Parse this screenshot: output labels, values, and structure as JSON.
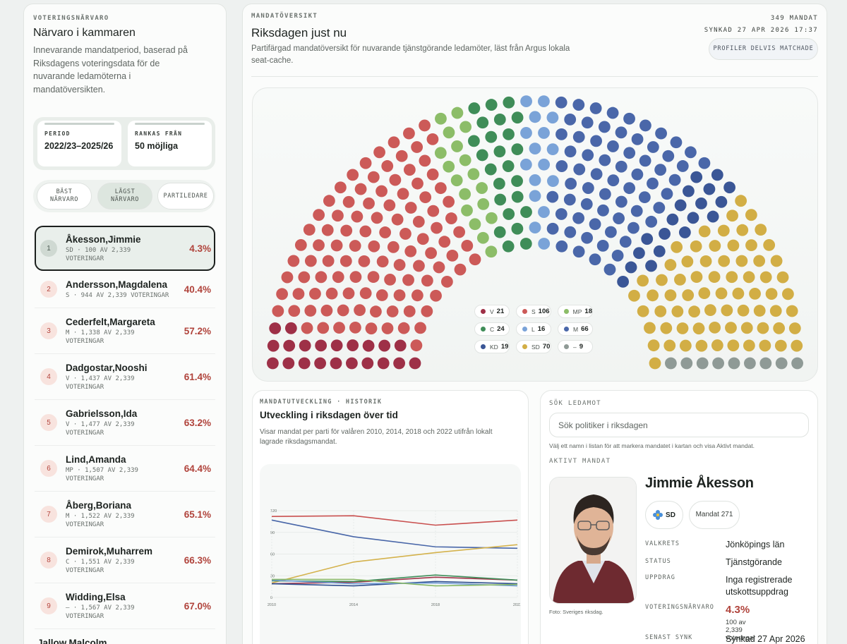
{
  "attendance": {
    "eyebrow": "VOTERINGSNÄRVARO",
    "title": "Närvaro i kammaren",
    "description": "Innevarande mandatperiod, baserad på Riksdagens voteringsdata för de nuvarande ledamöterna i mandatöversikten.",
    "period_label": "PERIOD",
    "period": "2022/23–2025/26",
    "rank_label": "RANKAS FRÅN",
    "rank_from": "50 möjliga",
    "tabs": [
      "BÄST NÄRVARO",
      "LÄGST NÄRVARO",
      "PARTILEDARE"
    ],
    "active_tab": 1,
    "selected": 0,
    "members": [
      {
        "rank": 1,
        "name": "Åkesson,Jimmie",
        "meta": "SD · 100 AV 2,339 VOTERINGAR",
        "attendance": "4.3%"
      },
      {
        "rank": 2,
        "name": "Andersson,Magdalena",
        "meta": "S · 944 AV 2,339 VOTERINGAR",
        "attendance": "40.4%"
      },
      {
        "rank": 3,
        "name": "Cederfelt,Margareta",
        "meta": "M · 1,338 AV 2,339 VOTERINGAR",
        "attendance": "57.2%"
      },
      {
        "rank": 4,
        "name": "Dadgostar,Nooshi",
        "meta": "V · 1,437 AV 2,339 VOTERINGAR",
        "attendance": "61.4%"
      },
      {
        "rank": 5,
        "name": "Gabrielsson,Ida",
        "meta": "V · 1,477 AV 2,339 VOTERINGAR",
        "attendance": "63.2%"
      },
      {
        "rank": 6,
        "name": "Lind,Amanda",
        "meta": "MP · 1,507 AV 2,339 VOTERINGAR",
        "attendance": "64.4%"
      },
      {
        "rank": 7,
        "name": "Åberg,Boriana",
        "meta": "M · 1,522 AV 2,339 VOTERINGAR",
        "attendance": "65.1%"
      },
      {
        "rank": 8,
        "name": "Demirok,Muharrem",
        "meta": "C · 1,551 AV 2,339 VOTERINGAR",
        "attendance": "66.3%"
      },
      {
        "rank": 9,
        "name": "Widding,Elsa",
        "meta": "– · 1,567 AV 2,339 VOTERINGAR",
        "attendance": "67.0%"
      },
      {
        "name": "Jallow,Malcolm"
      }
    ]
  },
  "overview": {
    "eyebrow": "MANDATÖVERSIKT",
    "title": "Riksdagen just nu",
    "description": "Partifärgad mandatöversikt för nuvarande tjänstgörande ledamöter, läst från Argus lokala seat-cache.",
    "total": "349 MANDAT",
    "synced": "SYNKAD 27 APR 2026 17:37",
    "status_button": "PROFILER DELVIS MATCHADE",
    "parties": [
      {
        "name": "V",
        "seats": 21,
        "color": "#9e3047"
      },
      {
        "name": "S",
        "seats": 106,
        "color": "#cc5a58"
      },
      {
        "name": "MP",
        "seats": 18,
        "color": "#8cbd68"
      },
      {
        "name": "C",
        "seats": 24,
        "color": "#3f8d58"
      },
      {
        "name": "L",
        "seats": 16,
        "color": "#7aa3d8"
      },
      {
        "name": "M",
        "seats": 66,
        "color": "#4a67a9"
      },
      {
        "name": "KD",
        "seats": 19,
        "color": "#3a5696"
      },
      {
        "name": "SD",
        "seats": 70,
        "color": "#d2ae45"
      },
      {
        "name": "–",
        "seats": 9,
        "color": "#8f9a96"
      }
    ]
  },
  "history": {
    "eyebrow": "MANDATUTVECKLING · HISTORIK",
    "title": "Utveckling i riksdagen över tid",
    "description": "Visar mandat per parti för valåren 2010, 2014, 2018 och 2022 utifrån lokalt lagrade riksdagsmandat.",
    "chart": {
      "type": "line",
      "x": [
        2010,
        2014,
        2018,
        2022
      ],
      "xlim": [
        2010,
        2022
      ],
      "xticks": [
        2010,
        2014,
        2018,
        2022
      ],
      "ylim": [
        0,
        120
      ],
      "yticks": [
        0,
        30,
        60,
        90,
        120
      ],
      "grid": true,
      "series": [
        {
          "color": "#c9504f",
          "values": [
            112,
            113,
            100,
            107
          ]
        },
        {
          "color": "#4866a8",
          "values": [
            107,
            84,
            70,
            68
          ]
        },
        {
          "color": "#d4b24c",
          "values": [
            20,
            49,
            62,
            73
          ]
        },
        {
          "color": "#a0344a",
          "values": [
            19,
            21,
            28,
            24
          ]
        },
        {
          "color": "#3f8f5a",
          "values": [
            23,
            22,
            31,
            24
          ]
        },
        {
          "color": "#2f4f8f",
          "values": [
            19,
            16,
            22,
            19
          ]
        },
        {
          "color": "#6f9bd6",
          "values": [
            24,
            19,
            20,
            16
          ]
        },
        {
          "color": "#86b765",
          "values": [
            25,
            25,
            16,
            18
          ]
        }
      ]
    }
  },
  "search": {
    "eyebrow": "SÖK LEDAMOT",
    "placeholder": "Sök politiker i riksdagen",
    "hint": "Välj ett namn i listan för att markera mandatet i kartan och visa Aktivt mandat.",
    "active_label": "AKTIVT MANDAT",
    "photo_credit": "Foto: Sveriges riksdag.",
    "name": "Jimmie Åkesson",
    "party": "SD",
    "seat": "Mandat 271",
    "details": [
      {
        "label": "VALKRETS",
        "value": "Jönköpings län"
      },
      {
        "label": "STATUS",
        "value": "Tjänstgörande"
      },
      {
        "label": "UPPDRAG",
        "value": "Inga registrerade utskottsuppdrag"
      },
      {
        "label": "VOTERINGSNÄRVARO",
        "value": "4.3%",
        "note": "100 av 2,339 voteringar"
      },
      {
        "label": "SENAST SYNK",
        "value": "Synkad 27 Apr 2026"
      }
    ]
  }
}
